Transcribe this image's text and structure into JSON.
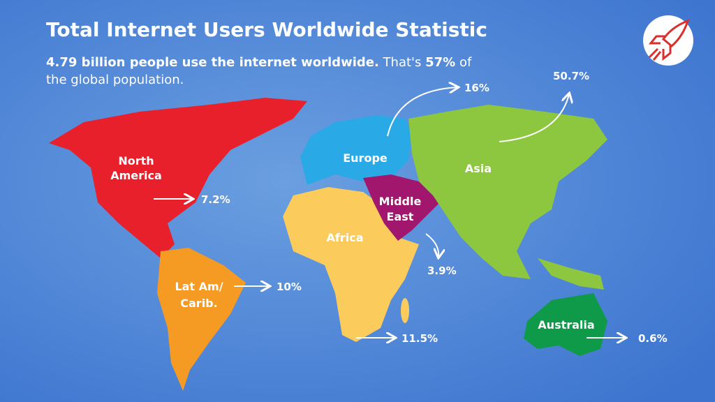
{
  "header": {
    "title": "Total Internet Users Worldwide Statistic",
    "subtitle": {
      "bold_1": "4.79 billion people use the internet worldwide.",
      "text_1": "That's",
      "bold_2": "57%",
      "text_2": "of",
      "line_2": "the global population."
    }
  },
  "regions": [
    {
      "name": [
        "North",
        "America"
      ],
      "share": "7.2%"
    },
    {
      "name": [
        "Lat Am/",
        "Carib."
      ],
      "share": "10%"
    },
    {
      "name": [
        "Europe"
      ],
      "share": "16%"
    },
    {
      "name": [
        "Africa"
      ],
      "share": "11.5%"
    },
    {
      "name": [
        "Middle",
        "East"
      ],
      "share": "3.9%"
    },
    {
      "name": [
        "Asia"
      ],
      "share": "50.7%"
    },
    {
      "name": [
        "Australia"
      ],
      "share": "0.6%"
    }
  ]
}
